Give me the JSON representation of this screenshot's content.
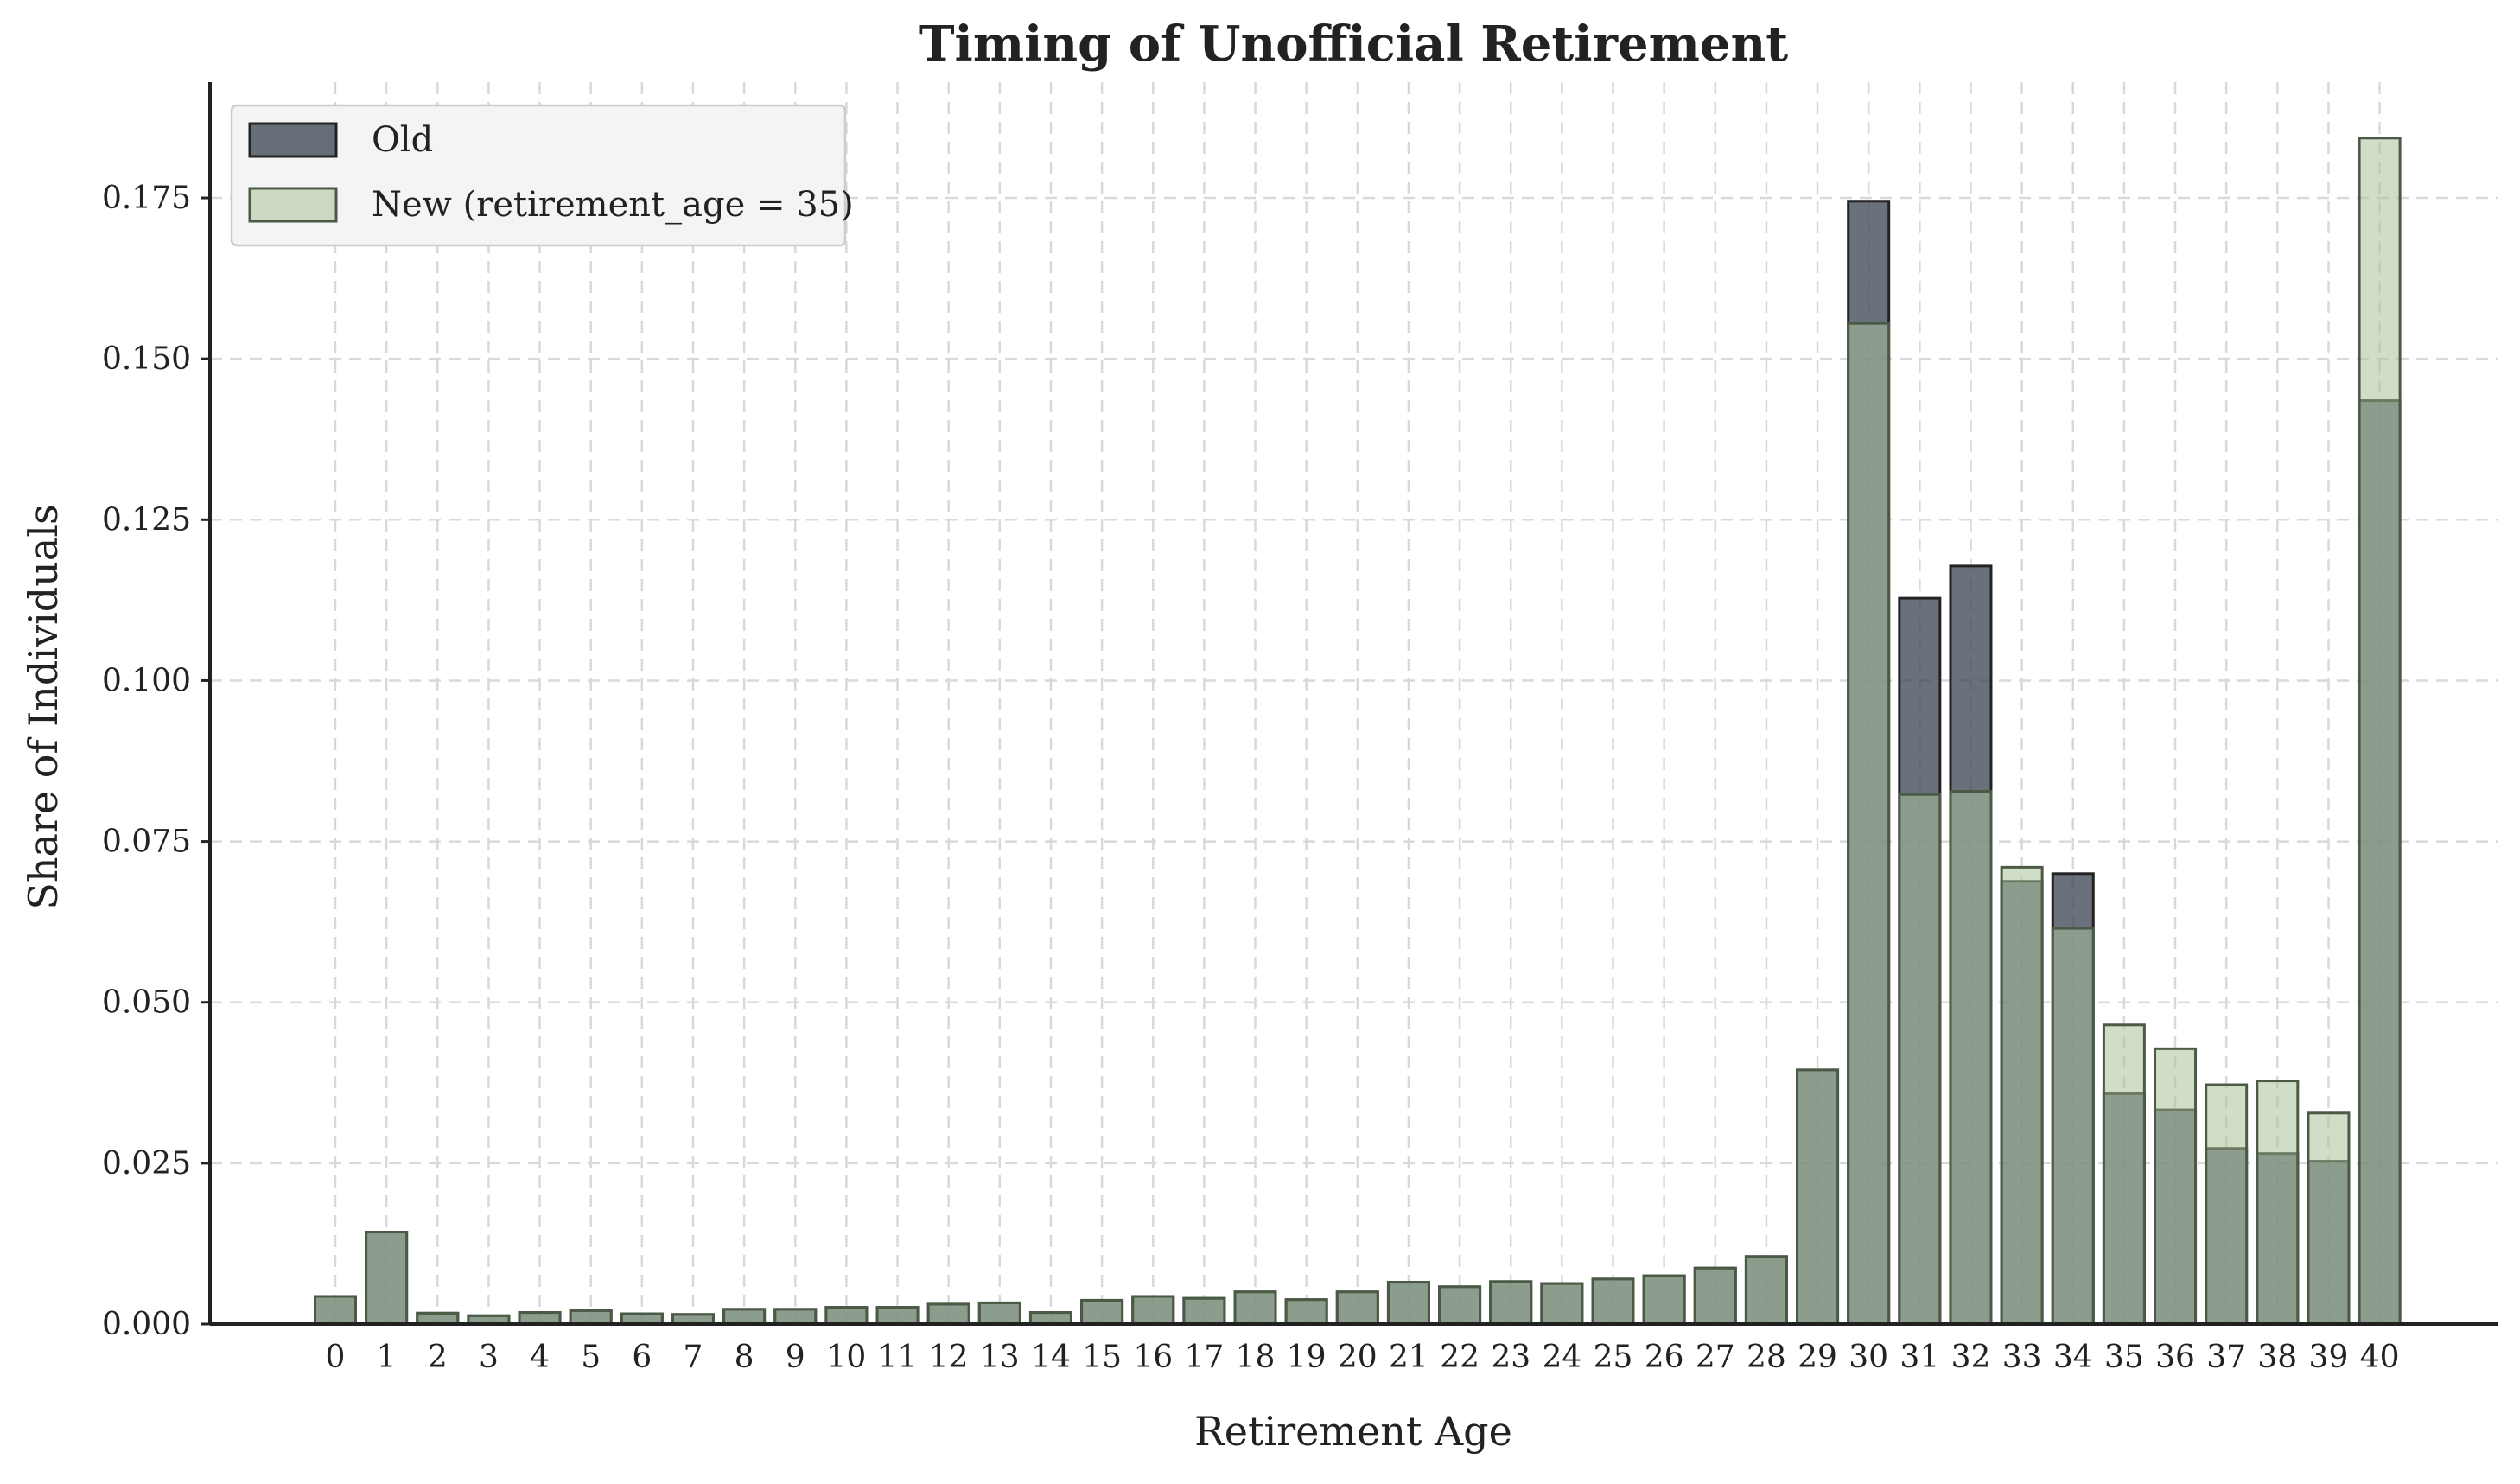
{
  "chart_data": {
    "type": "bar",
    "title": "Timing of Unofficial Retirement",
    "xlabel": "Retirement Age",
    "ylabel": "Share of Individuals",
    "categories": [
      "0",
      "1",
      "2",
      "3",
      "4",
      "5",
      "6",
      "7",
      "8",
      "9",
      "10",
      "11",
      "12",
      "13",
      "14",
      "15",
      "16",
      "17",
      "18",
      "19",
      "20",
      "21",
      "22",
      "23",
      "24",
      "25",
      "26",
      "27",
      "28",
      "29",
      "30",
      "31",
      "32",
      "33",
      "34",
      "35",
      "36",
      "37",
      "38",
      "39",
      "40"
    ],
    "ylim": [
      0,
      0.193
    ],
    "yticks": [
      0.0,
      0.025,
      0.05,
      0.075,
      0.1,
      0.125,
      0.15,
      0.175
    ],
    "ytick_labels": [
      "0.000",
      "0.025",
      "0.050",
      "0.075",
      "0.100",
      "0.125",
      "0.150",
      "0.175"
    ],
    "grid": true,
    "legend_position": "top-left",
    "series": [
      {
        "name": "Old",
        "color": "#3a4052",
        "values": [
          0.0043,
          0.0143,
          0.0017,
          0.0013,
          0.0018,
          0.0021,
          0.0016,
          0.0015,
          0.0023,
          0.0023,
          0.0026,
          0.0026,
          0.0031,
          0.0033,
          0.0018,
          0.0037,
          0.0043,
          0.004,
          0.005,
          0.0038,
          0.005,
          0.0065,
          0.0058,
          0.0066,
          0.0063,
          0.007,
          0.0075,
          0.0087,
          0.0105,
          0.0395,
          0.1745,
          0.1128,
          0.1178,
          0.0688,
          0.07,
          0.0358,
          0.0333,
          0.0273,
          0.0265,
          0.0253,
          0.1435
        ]
      },
      {
        "name": "New (retirement_age = 35)",
        "color": "#a9c29a",
        "values": [
          0.0043,
          0.0143,
          0.0017,
          0.0013,
          0.0018,
          0.0021,
          0.0016,
          0.0015,
          0.0023,
          0.0023,
          0.0026,
          0.0026,
          0.0031,
          0.0033,
          0.0018,
          0.0037,
          0.0043,
          0.004,
          0.005,
          0.0038,
          0.005,
          0.0065,
          0.0058,
          0.0066,
          0.0063,
          0.007,
          0.0075,
          0.0087,
          0.0105,
          0.0395,
          0.1555,
          0.0823,
          0.0828,
          0.071,
          0.0615,
          0.0465,
          0.0428,
          0.0372,
          0.0378,
          0.0328,
          0.1843
        ]
      }
    ]
  }
}
